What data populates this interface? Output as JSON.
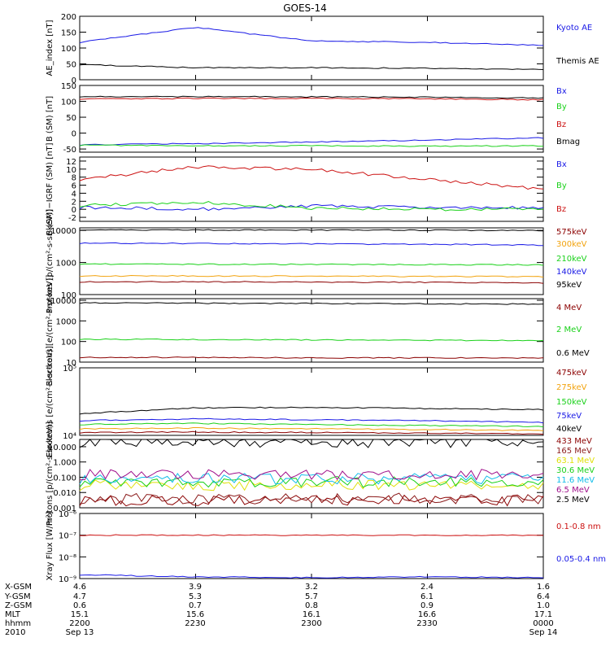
{
  "title": "GOES-14",
  "colors": {
    "black": "#000000",
    "blue": "#1a1ae6",
    "green": "#1ad11a",
    "red": "#cc1111",
    "orange": "#f2a30e",
    "cyan": "#12bdea",
    "darkred": "#8b0000",
    "purple": "#a0108b",
    "yellow": "#e0e00a",
    "brown": "#8b1a1a"
  },
  "time_axis": {
    "rows": [
      {
        "label": "X-GSM",
        "values": [
          "4.6",
          "3.9",
          "3.2",
          "2.4",
          "1.6"
        ]
      },
      {
        "label": "Y-GSM",
        "values": [
          "4.7",
          "5.3",
          "5.7",
          "6.1",
          "6.4"
        ]
      },
      {
        "label": "Z-GSM",
        "values": [
          "0.6",
          "0.7",
          "0.8",
          "0.9",
          "1.0"
        ]
      },
      {
        "label": "MLT",
        "values": [
          "15.1",
          "15.6",
          "16.1",
          "16.6",
          "17.1"
        ]
      },
      {
        "label": "hhmm",
        "values": [
          "2200",
          "2230",
          "2300",
          "2330",
          "0000"
        ]
      },
      {
        "label": "2010",
        "values": [
          "Sep 13",
          "",
          "",
          "",
          "Sep 14"
        ]
      }
    ]
  },
  "chart_data": [
    {
      "type": "line",
      "ylabel": "AE_index [nT]",
      "scale": "linear",
      "ylim": [
        0,
        200
      ],
      "yticks": [
        0,
        50,
        100,
        150,
        200
      ],
      "ytick_labels": [
        "0",
        "50",
        "100",
        "150",
        "200"
      ],
      "x": [
        "2200",
        "2230",
        "2300",
        "2330",
        "0000"
      ],
      "series": [
        {
          "name": "Kyoto AE",
          "color": "#1a1ae6",
          "values": [
            118,
            165,
            122,
            118,
            108
          ]
        },
        {
          "name": "Themis AE",
          "color": "#000000",
          "values": [
            48,
            38,
            38,
            36,
            32
          ]
        }
      ]
    },
    {
      "type": "line",
      "ylabel": "B (SM) [nT]",
      "scale": "linear",
      "ylim": [
        -60,
        150
      ],
      "yticks": [
        -50,
        0,
        50,
        100,
        150
      ],
      "ytick_labels": [
        "-50",
        "0",
        "50",
        "100",
        "150"
      ],
      "x": [
        "2200",
        "2230",
        "2300",
        "2330",
        "0000"
      ],
      "series": [
        {
          "name": "Bx",
          "color": "#1a1ae6",
          "values": [
            -37,
            -33,
            -28,
            -22,
            -15
          ]
        },
        {
          "name": "By",
          "color": "#1ad11a",
          "values": [
            -38,
            -40,
            -40,
            -41,
            -40
          ]
        },
        {
          "name": "Bz",
          "color": "#cc1111",
          "values": [
            108,
            109,
            109,
            108,
            105
          ]
        },
        {
          "name": "Bmag",
          "color": "#000000",
          "values": [
            115,
            115,
            114,
            113,
            110
          ]
        }
      ]
    },
    {
      "type": "line",
      "ylabel": "B (SM)−IGRF (SM) [nT]",
      "scale": "linear",
      "ylim": [
        -3,
        13
      ],
      "yticks": [
        -2,
        0,
        2,
        4,
        6,
        8,
        10,
        12
      ],
      "ytick_labels": [
        "-2",
        "0",
        "2",
        "4",
        "6",
        "8",
        "10",
        "12"
      ],
      "x": [
        "2200",
        "2230",
        "2300",
        "2330",
        "0000"
      ],
      "series": [
        {
          "name": "Bx",
          "color": "#1a1ae6",
          "values": [
            0.5,
            0,
            0.8,
            0.5,
            0.3
          ]
        },
        {
          "name": "By",
          "color": "#1ad11a",
          "values": [
            1.0,
            1.7,
            0.3,
            0,
            0
          ]
        },
        {
          "name": "Bz",
          "color": "#cc1111",
          "values": [
            7.5,
            10.5,
            10.0,
            7.5,
            5.0
          ]
        }
      ]
    },
    {
      "type": "line",
      "ylabel": "Protons [p/(cm²-s-sr-keV)]",
      "scale": "log",
      "ylim": [
        100,
        12000
      ],
      "yticks": [
        100,
        1000,
        10000
      ],
      "ytick_labels": [
        "100",
        "1000",
        "10000"
      ],
      "x": [
        "2200",
        "2230",
        "2300",
        "2330",
        "0000"
      ],
      "series": [
        {
          "name": "575keV",
          "color": "#8b0000",
          "values": [
            250,
            250,
            245,
            240,
            230
          ]
        },
        {
          "name": "300keV",
          "color": "#f2a30e",
          "values": [
            380,
            380,
            375,
            370,
            360
          ]
        },
        {
          "name": "210keV",
          "color": "#1ad11a",
          "values": [
            900,
            880,
            870,
            860,
            840
          ]
        },
        {
          "name": "140keV",
          "color": "#1a1ae6",
          "values": [
            4000,
            3900,
            3800,
            3700,
            3500
          ]
        },
        {
          "name": "95keV",
          "color": "#000000",
          "values": [
            10500,
            10300,
            10200,
            10100,
            10000
          ]
        }
      ]
    },
    {
      "type": "line",
      "ylabel": "Electrons [e/(cm²-s-sr-keV)]",
      "scale": "log",
      "ylim": [
        10,
        12000
      ],
      "yticks": [
        10,
        100,
        1000,
        10000
      ],
      "ytick_labels": [
        "10",
        "100",
        "1000",
        "10000"
      ],
      "x": [
        "2200",
        "2230",
        "2300",
        "2330",
        "0000"
      ],
      "series": [
        {
          "name": "4 MeV",
          "color": "#8b0000",
          "values": [
            17,
            17,
            16,
            16,
            16
          ]
        },
        {
          "name": "2 MeV",
          "color": "#1ad11a",
          "values": [
            130,
            125,
            120,
            115,
            110
          ]
        },
        {
          "name": "0.6 MeV",
          "color": "#000000",
          "values": [
            7500,
            7200,
            7000,
            6800,
            6500
          ]
        }
      ]
    },
    {
      "type": "line",
      "ylabel": "Electrons [e/(cm²-s-sr-keV)]",
      "scale": "log",
      "ylim": [
        10000,
        100000
      ],
      "yticks": [
        10000,
        100000
      ],
      "ytick_labels": [
        "10⁴",
        "10⁵"
      ],
      "x": [
        "2200",
        "2230",
        "2300",
        "2330",
        "0000"
      ],
      "series": [
        {
          "name": "475keV",
          "color": "#8b0000",
          "values": [
            11000,
            11200,
            11000,
            10800,
            10500
          ]
        },
        {
          "name": "275keV",
          "color": "#f2a30e",
          "values": [
            12500,
            12800,
            12500,
            12200,
            11800
          ]
        },
        {
          "name": "150keV",
          "color": "#1ad11a",
          "values": [
            14500,
            15000,
            14500,
            14000,
            13500
          ]
        },
        {
          "name": "75keV",
          "color": "#1a1ae6",
          "values": [
            16500,
            17500,
            17000,
            16500,
            15500
          ]
        },
        {
          "name": "40keV",
          "color": "#000000",
          "values": [
            21000,
            25500,
            26000,
            25000,
            24000
          ]
        }
      ]
    },
    {
      "type": "line",
      "ylabel": "Protons [p/(cm²-s-sr-keV)]",
      "scale": "log",
      "ylim": [
        0.001,
        30
      ],
      "yticks": [
        0.001,
        0.01,
        0.1,
        1,
        10
      ],
      "ytick_labels": [
        "0.001",
        "0.010",
        "0.100",
        "1.000",
        "10.000"
      ],
      "x": [
        "2200",
        "2230",
        "2300",
        "2330",
        "0000"
      ],
      "series": [
        {
          "name": "433 MeV",
          "color": "#8b0000",
          "values": [
            0.003,
            0.003,
            0.003,
            0.003,
            0.003
          ]
        },
        {
          "name": "165 MeV",
          "color": "#8b1a1a",
          "values": [
            0.004,
            0.004,
            0.004,
            0.004,
            0.004
          ]
        },
        {
          "name": "63.1 MeV",
          "color": "#e0e00a",
          "values": [
            0.03,
            0.03,
            0.03,
            0.03,
            0.03
          ]
        },
        {
          "name": "30.6 MeV",
          "color": "#1ad11a",
          "values": [
            0.05,
            0.05,
            0.05,
            0.05,
            0.05
          ]
        },
        {
          "name": "11.6 MeV",
          "color": "#12bdea",
          "values": [
            0.08,
            0.08,
            0.08,
            0.08,
            0.08
          ]
        },
        {
          "name": "6.5 MeV",
          "color": "#a0108b",
          "values": [
            0.15,
            0.15,
            0.15,
            0.15,
            0.15
          ]
        },
        {
          "name": "2.5 MeV",
          "color": "#000000",
          "values": [
            20,
            20,
            19,
            19,
            18
          ]
        }
      ]
    },
    {
      "type": "line",
      "ylabel": "Xray Flux [W/m²]",
      "scale": "log",
      "ylim": [
        1e-09,
        1e-06
      ],
      "yticks": [
        1e-09,
        1e-08,
        1e-07,
        1e-06
      ],
      "ytick_labels": [
        "10⁻⁹",
        "10⁻⁸",
        "10⁻⁷",
        "10⁻⁶"
      ],
      "x": [
        "2200",
        "2230",
        "2300",
        "2330",
        "0000"
      ],
      "series": [
        {
          "name": "0.1-0.8 nm",
          "color": "#cc1111",
          "values": [
            1e-07,
            1e-07,
            1e-07,
            1e-07,
            1e-07
          ]
        },
        {
          "name": "0.05-0.4 nm",
          "color": "#1a1ae6",
          "values": [
            1.5e-09,
            1.2e-09,
            1.1e-09,
            1.2e-09,
            1.1e-09
          ]
        }
      ]
    }
  ]
}
